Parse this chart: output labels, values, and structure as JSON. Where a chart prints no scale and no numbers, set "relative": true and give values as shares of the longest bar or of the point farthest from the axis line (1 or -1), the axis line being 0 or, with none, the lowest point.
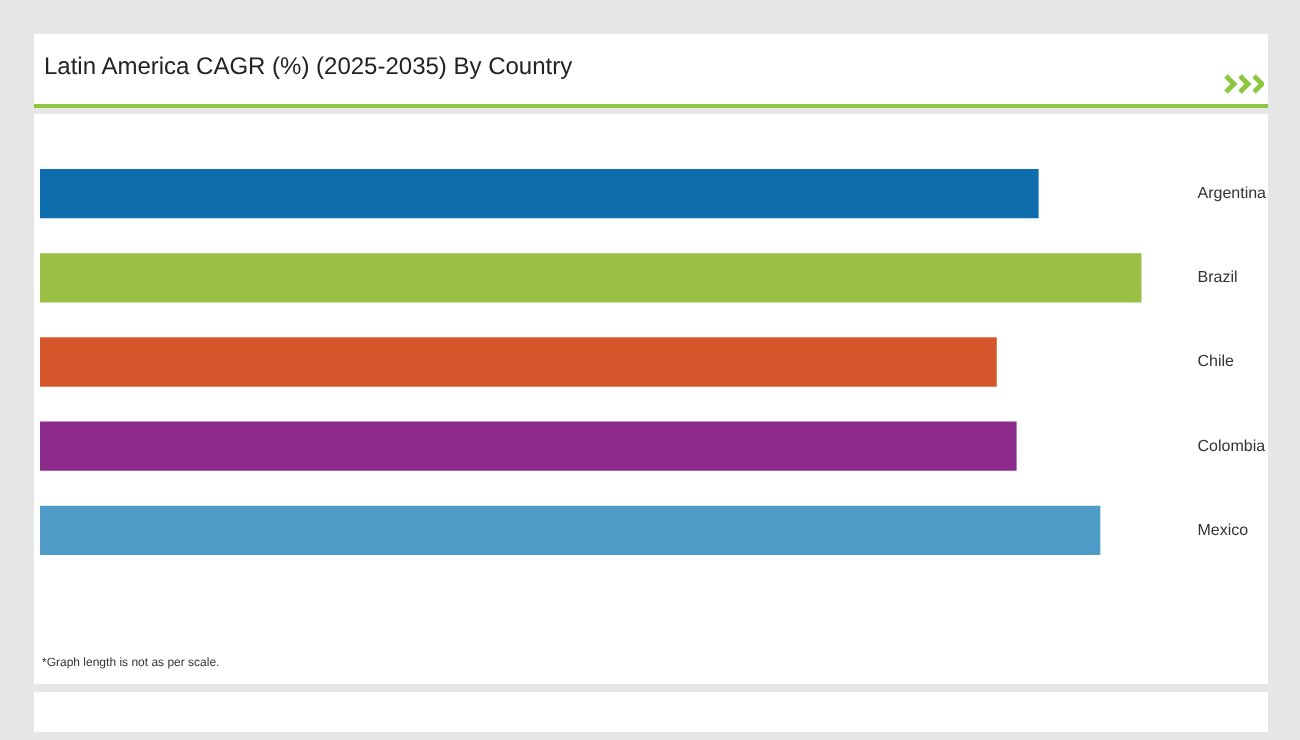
{
  "chart_data": {
    "type": "bar",
    "orientation": "horizontal",
    "relative": true,
    "title": "Latin America CAGR (%) (2025-2035) By Country",
    "categories": [
      "Argentina",
      "Brazil",
      "Chile",
      "Colombia",
      "Mexico"
    ],
    "values": [
      0.906,
      1,
      0.868,
      0.886,
      0.962
    ],
    "colors": [
      "#0e6ead",
      "#99bf45",
      "#d5562a",
      "#8b2a8a",
      "#4f9bc8"
    ],
    "legend": false,
    "annotations": [
      "*Graph length is not as per scale."
    ]
  }
}
